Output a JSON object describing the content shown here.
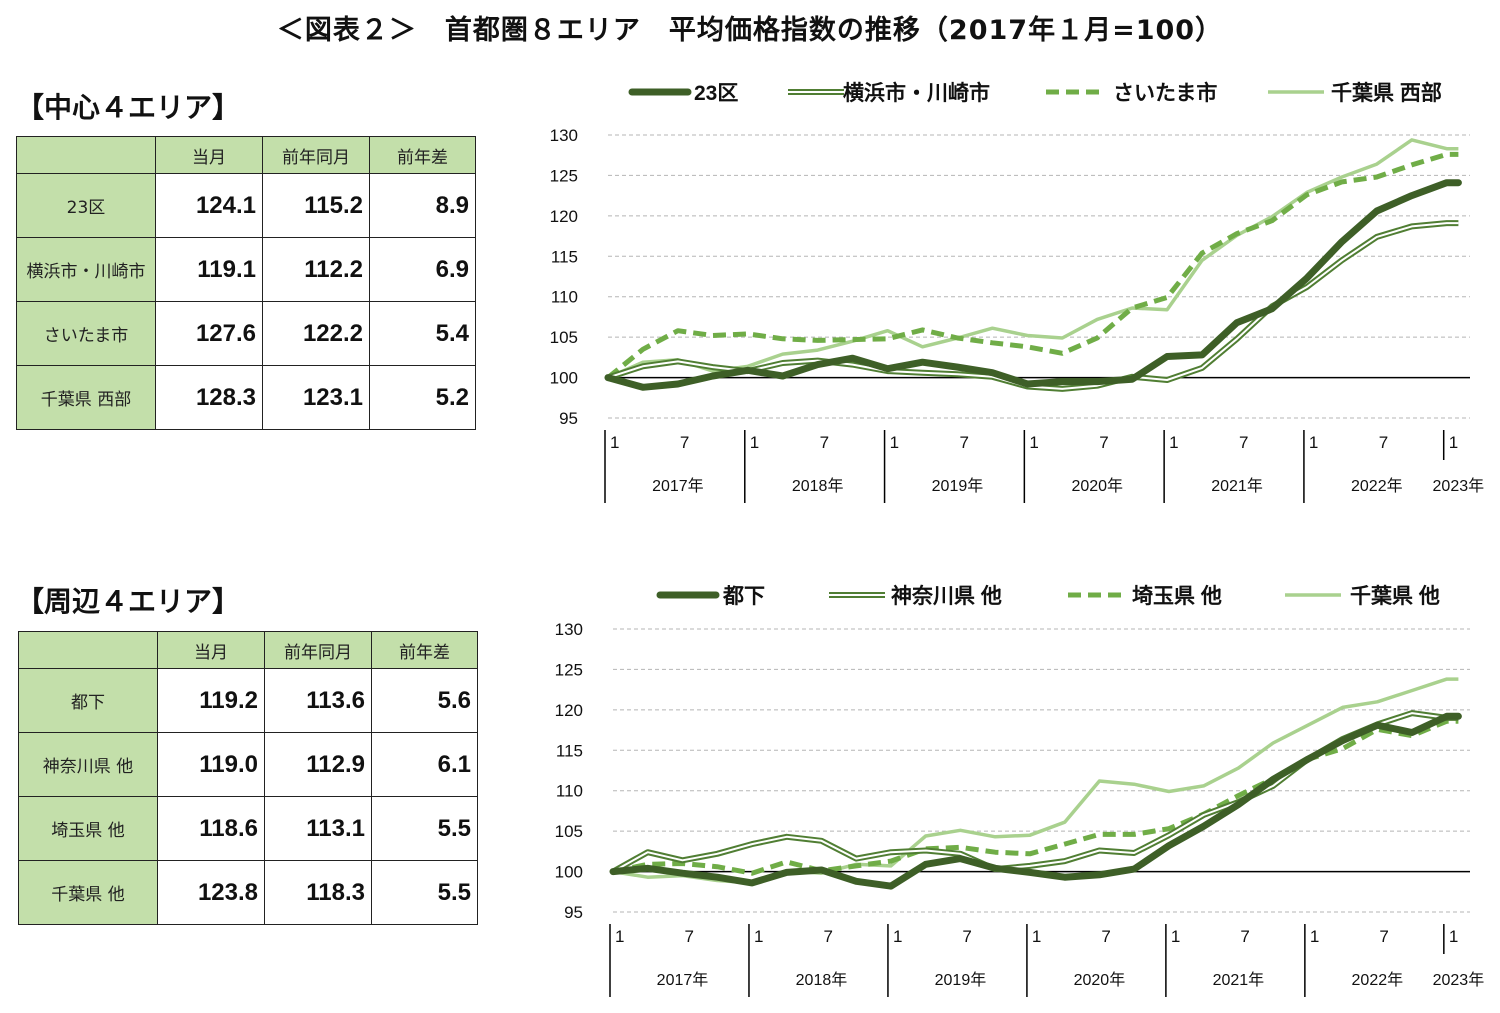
{
  "title": "＜図表２＞　首都圏８エリア　平均価格指数の推移（2017年１月=100）",
  "sections": [
    {
      "heading": "【中心４エリア】",
      "columns": [
        "",
        "当月",
        "前年同月",
        "前年差"
      ],
      "rows": [
        {
          "name": "23区",
          "current": "124.1",
          "prev_year": "115.2",
          "diff": "8.9"
        },
        {
          "name": "横浜市・川崎市",
          "current": "119.1",
          "prev_year": "112.2",
          "diff": "6.9"
        },
        {
          "name": "さいたま市",
          "current": "127.6",
          "prev_year": "122.2",
          "diff": "5.4"
        },
        {
          "name": "千葉県 西部",
          "current": "128.3",
          "prev_year": "123.1",
          "diff": "5.2"
        }
      ]
    },
    {
      "heading": "【周辺４エリア】",
      "columns": [
        "",
        "当月",
        "前年同月",
        "前年差"
      ],
      "rows": [
        {
          "name": "都下",
          "current": "119.2",
          "prev_year": "113.6",
          "diff": "5.6"
        },
        {
          "name": "神奈川県 他",
          "current": "119.0",
          "prev_year": "112.9",
          "diff": "6.1"
        },
        {
          "name": "埼玉県 他",
          "current": "118.6",
          "prev_year": "113.1",
          "diff": "5.5"
        },
        {
          "name": "千葉県 他",
          "current": "123.8",
          "prev_year": "118.3",
          "diff": "5.5"
        }
      ]
    }
  ],
  "colors": {
    "dark_green": "#3e5f27",
    "mid_green": "#507e33",
    "dashed_green": "#70ad47",
    "light_green": "#a9d18e",
    "header_fill": "#c3dfaa"
  },
  "chart_data": [
    {
      "type": "line",
      "title": "",
      "ylim": [
        95,
        130
      ],
      "yticks": [
        95,
        100,
        105,
        110,
        115,
        120,
        125,
        130
      ],
      "reference_line": 100,
      "grid": "horizontal dashed",
      "legend": "top",
      "month_ticks": [
        "1",
        "7",
        "1",
        "7",
        "1",
        "7",
        "1",
        "7",
        "1",
        "7",
        "1",
        "7",
        "1"
      ],
      "year_labels": [
        "2017年",
        "2018年",
        "2019年",
        "2020年",
        "2021年",
        "2022年",
        "2023年"
      ],
      "x": [
        "2017-01",
        "2017-04",
        "2017-07",
        "2017-10",
        "2018-01",
        "2018-04",
        "2018-07",
        "2018-10",
        "2019-01",
        "2019-04",
        "2019-07",
        "2019-10",
        "2020-01",
        "2020-04",
        "2020-07",
        "2020-10",
        "2021-01",
        "2021-04",
        "2021-07",
        "2021-10",
        "2022-01",
        "2022-04",
        "2022-07",
        "2022-10",
        "2023-01",
        "2023-02"
      ],
      "series": [
        {
          "name": "23区",
          "style": "thick-dark",
          "values": [
            100,
            98.8,
            99.2,
            100.2,
            100.9,
            100.2,
            101.6,
            102.4,
            101.1,
            101.9,
            101.3,
            100.6,
            99.2,
            99.5,
            99.5,
            99.8,
            102.6,
            102.8,
            106.8,
            108.5,
            112.3,
            116.8,
            120.6,
            122.5,
            124.1,
            124.1
          ]
        },
        {
          "name": "横浜市・川崎市",
          "style": "double-line",
          "values": [
            100,
            101.4,
            102.0,
            101.3,
            100.8,
            101.8,
            102.1,
            101.6,
            100.8,
            100.6,
            100.4,
            100.1,
            98.9,
            98.6,
            99.0,
            100.1,
            99.7,
            101.2,
            104.8,
            108.8,
            111.2,
            114.5,
            117.4,
            118.7,
            119.1,
            119.1
          ]
        },
        {
          "name": "さいたま市",
          "style": "dashed",
          "values": [
            100,
            103.5,
            105.8,
            105.2,
            105.4,
            104.8,
            104.6,
            104.7,
            104.8,
            105.9,
            104.9,
            104.3,
            103.8,
            103.0,
            104.9,
            108.6,
            109.9,
            115.4,
            117.8,
            119.4,
            122.6,
            124.2,
            124.8,
            126.3,
            127.6,
            127.6
          ]
        },
        {
          "name": "千葉県 西部",
          "style": "light",
          "values": [
            100,
            101.9,
            102.2,
            100.8,
            101.4,
            102.9,
            103.4,
            104.5,
            105.8,
            103.8,
            104.9,
            106.1,
            105.2,
            104.9,
            107.2,
            108.6,
            108.4,
            114.5,
            117.6,
            119.9,
            122.9,
            124.8,
            126.4,
            129.4,
            128.3,
            128.3
          ]
        }
      ]
    },
    {
      "type": "line",
      "title": "",
      "ylim": [
        95,
        130
      ],
      "yticks": [
        95,
        100,
        105,
        110,
        115,
        120,
        125,
        130
      ],
      "reference_line": 100,
      "grid": "horizontal dashed",
      "legend": "top",
      "month_ticks": [
        "1",
        "7",
        "1",
        "7",
        "1",
        "7",
        "1",
        "7",
        "1",
        "7",
        "1",
        "7",
        "1"
      ],
      "year_labels": [
        "2017年",
        "2018年",
        "2019年",
        "2020年",
        "2021年",
        "2022年",
        "2023年"
      ],
      "x": [
        "2017-01",
        "2017-04",
        "2017-07",
        "2017-10",
        "2018-01",
        "2018-04",
        "2018-07",
        "2018-10",
        "2019-01",
        "2019-04",
        "2019-07",
        "2019-10",
        "2020-01",
        "2020-04",
        "2020-07",
        "2020-10",
        "2021-01",
        "2021-04",
        "2021-07",
        "2021-10",
        "2022-01",
        "2022-04",
        "2022-07",
        "2022-10",
        "2023-01",
        "2023-02"
      ],
      "series": [
        {
          "name": "都下",
          "style": "thick-dark",
          "values": [
            100,
            100.4,
            99.8,
            99.3,
            98.6,
            99.9,
            100.2,
            98.8,
            98.2,
            100.9,
            101.6,
            100.4,
            99.9,
            99.3,
            99.6,
            100.3,
            103.2,
            105.6,
            108.3,
            111.4,
            113.9,
            116.2,
            118.1,
            117.2,
            119.2,
            119.2
          ]
        },
        {
          "name": "神奈川県 他",
          "style": "double-line",
          "values": [
            100,
            102.4,
            101.4,
            102.2,
            103.4,
            104.3,
            103.8,
            101.6,
            102.4,
            102.6,
            102.2,
            100.3,
            100.7,
            101.3,
            102.6,
            102.3,
            104.5,
            107.0,
            108.6,
            110.6,
            113.9,
            116.4,
            118.2,
            119.6,
            119.0,
            119.0
          ]
        },
        {
          "name": "埼玉県 他",
          "style": "dashed",
          "values": [
            100,
            100.9,
            101.0,
            100.6,
            99.8,
            101.2,
            100.1,
            100.7,
            101.3,
            102.8,
            103.0,
            102.4,
            102.2,
            103.4,
            104.6,
            104.6,
            105.3,
            107.1,
            109.4,
            111.5,
            113.9,
            115.2,
            117.6,
            116.8,
            118.6,
            118.6
          ]
        },
        {
          "name": "千葉県 他",
          "style": "light",
          "values": [
            100,
            99.3,
            99.5,
            98.9,
            98.6,
            100.1,
            99.8,
            100.9,
            100.7,
            104.4,
            105.1,
            104.3,
            104.5,
            106.1,
            111.2,
            110.8,
            109.9,
            110.6,
            112.8,
            115.9,
            118.1,
            120.3,
            121.0,
            122.4,
            123.8,
            123.8
          ]
        }
      ]
    }
  ]
}
